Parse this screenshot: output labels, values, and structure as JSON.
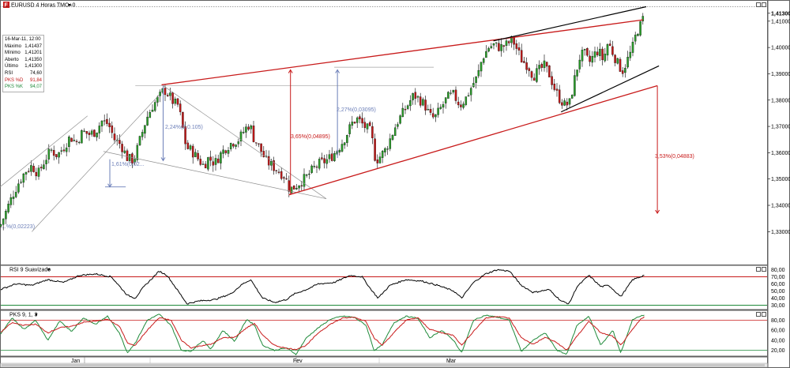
{
  "header": {
    "symbol_badge": "F",
    "title": "EURUSD 4 Horas TMO+0"
  },
  "info_box": {
    "datetime": "16-Mar-11, 12:00",
    "rows": [
      {
        "label": "Máximo",
        "value": "1,41437"
      },
      {
        "label": "Mínimo",
        "value": "1,41201"
      },
      {
        "label": "Aberto",
        "value": "1,41350"
      },
      {
        "label": "Último",
        "value": "1,41300"
      },
      {
        "label": "RSI",
        "value": "74,60"
      },
      {
        "label": "PKS %D",
        "value": "91,84"
      },
      {
        "label": "PKS %K",
        "value": "94,07"
      }
    ]
  },
  "colors": {
    "up": "#2a9d2a",
    "down": "#c01818",
    "trend_red": "#c81a1a",
    "trend_black": "#000000",
    "measure_blue": "#6c7fb8",
    "pks_k": "#1f8a3a",
    "pks_d": "#c81a1a"
  },
  "price_axis": {
    "labels": [
      "1,41300",
      "1,41000",
      "1,40000",
      "1,39000",
      "1,38000",
      "1,37000",
      "1,36000",
      "1,35000",
      "1,34000",
      "1,33000"
    ],
    "current": "1,41300"
  },
  "time_axis": {
    "months": [
      "Jan",
      "Fev",
      "Mar"
    ],
    "year": "2011"
  },
  "annotations": {
    "measure_1": "1,61%(0,02...",
    "measure_2": "2,24%(0,0.105)",
    "measure_3": "3,65%(0,04895)",
    "measure_4": "2,27%(0,03095)",
    "measure_5": "3,53%(0,04883)",
    "measure_6": "...%(0,02223)"
  },
  "rsi_panel": {
    "title": "RSI 9 Suavizado",
    "labels": [
      "80,00",
      "70,00",
      "60,00",
      "50,00",
      "40,00",
      "30,00"
    ],
    "level_high": "70,00",
    "level_low": "30,00"
  },
  "pks_panel": {
    "title": "PKS 9, 1, 3",
    "labels": [
      "80,00",
      "60,00",
      "40,00",
      "20,00"
    ],
    "level_high": "80,00",
    "level_low": "20,00"
  },
  "chart_data": {
    "type": "candlestick",
    "title": "EURUSD 4 Horas TMO+0",
    "period": "4 Horas",
    "x_axis": {
      "months": [
        "Jan",
        "Fev",
        "Mar"
      ],
      "year": "2011"
    },
    "y_range": [
      1.325,
      1.4155
    ],
    "close_path": [
      [
        0,
        1.332
      ],
      [
        8,
        1.338
      ],
      [
        16,
        1.344
      ],
      [
        24,
        1.349
      ],
      [
        32,
        1.353
      ],
      [
        40,
        1.355
      ],
      [
        48,
        1.352
      ],
      [
        56,
        1.357
      ],
      [
        64,
        1.361
      ],
      [
        72,
        1.359
      ],
      [
        80,
        1.362
      ],
      [
        88,
        1.366
      ],
      [
        96,
        1.364
      ],
      [
        104,
        1.368
      ],
      [
        112,
        1.367
      ],
      [
        120,
        1.368
      ],
      [
        128,
        1.372
      ],
      [
        136,
        1.371
      ],
      [
        144,
        1.365
      ],
      [
        152,
        1.363
      ],
      [
        160,
        1.358
      ],
      [
        168,
        1.357
      ],
      [
        176,
        1.365
      ],
      [
        184,
        1.373
      ],
      [
        192,
        1.378
      ],
      [
        200,
        1.381
      ],
      [
        206,
        1.384
      ],
      [
        212,
        1.382
      ],
      [
        218,
        1.379
      ],
      [
        224,
        1.378
      ],
      [
        228,
        1.372
      ],
      [
        234,
        1.362
      ],
      [
        240,
        1.361
      ],
      [
        248,
        1.358
      ],
      [
        256,
        1.355
      ],
      [
        262,
        1.358
      ],
      [
        270,
        1.356
      ],
      [
        276,
        1.359
      ],
      [
        284,
        1.362
      ],
      [
        292,
        1.364
      ],
      [
        300,
        1.365
      ],
      [
        308,
        1.369
      ],
      [
        314,
        1.371
      ],
      [
        318,
        1.366
      ],
      [
        326,
        1.362
      ],
      [
        334,
        1.357
      ],
      [
        342,
        1.355
      ],
      [
        350,
        1.353
      ],
      [
        358,
        1.351
      ],
      [
        364,
        1.346
      ],
      [
        370,
        1.347
      ],
      [
        378,
        1.349
      ],
      [
        386,
        1.351
      ],
      [
        394,
        1.354
      ],
      [
        402,
        1.356
      ],
      [
        410,
        1.357
      ],
      [
        418,
        1.359
      ],
      [
        426,
        1.362
      ],
      [
        434,
        1.366
      ],
      [
        442,
        1.371
      ],
      [
        448,
        1.373
      ],
      [
        452,
        1.372
      ],
      [
        458,
        1.37
      ],
      [
        466,
        1.368
      ],
      [
        472,
        1.357
      ],
      [
        476,
        1.358
      ],
      [
        484,
        1.361
      ],
      [
        490,
        1.365
      ],
      [
        498,
        1.371
      ],
      [
        506,
        1.375
      ],
      [
        512,
        1.378
      ],
      [
        520,
        1.382
      ],
      [
        528,
        1.38
      ],
      [
        534,
        1.378
      ],
      [
        540,
        1.374
      ],
      [
        546,
        1.373
      ],
      [
        554,
        1.377
      ],
      [
        562,
        1.381
      ],
      [
        570,
        1.382
      ],
      [
        578,
        1.378
      ],
      [
        586,
        1.381
      ],
      [
        594,
        1.386
      ],
      [
        600,
        1.389
      ],
      [
        606,
        1.396
      ],
      [
        614,
        1.4
      ],
      [
        620,
        1.401
      ],
      [
        628,
        1.4
      ],
      [
        636,
        1.401
      ],
      [
        644,
        1.403
      ],
      [
        650,
        1.399
      ],
      [
        656,
        1.395
      ],
      [
        664,
        1.393
      ],
      [
        670,
        1.389
      ],
      [
        676,
        1.391
      ],
      [
        684,
        1.393
      ],
      [
        690,
        1.39
      ],
      [
        696,
        1.385
      ],
      [
        702,
        1.381
      ],
      [
        710,
        1.378
      ],
      [
        716,
        1.379
      ],
      [
        722,
        1.388
      ],
      [
        728,
        1.396
      ],
      [
        734,
        1.398
      ],
      [
        740,
        1.394
      ],
      [
        746,
        1.397
      ],
      [
        752,
        1.399
      ],
      [
        758,
        1.395
      ],
      [
        764,
        1.402
      ],
      [
        770,
        1.398
      ],
      [
        776,
        1.394
      ],
      [
        782,
        1.391
      ],
      [
        788,
        1.395
      ],
      [
        794,
        1.399
      ],
      [
        800,
        1.406
      ],
      [
        806,
        1.409
      ],
      [
        810,
        1.413
      ],
      [
        812,
        1.413
      ]
    ],
    "price_labels": [
      "1,41300",
      "1,41000",
      "1,40000",
      "1,39000",
      "1,38000",
      "1,37000",
      "1,36000",
      "1,35000",
      "1,34000",
      "1,33000"
    ],
    "rsi": {
      "name": "RSI 9 Suavizado",
      "levels": [
        30,
        70
      ],
      "range": [
        25,
        85
      ],
      "path": [
        [
          0,
          52
        ],
        [
          20,
          60
        ],
        [
          40,
          58
        ],
        [
          60,
          66
        ],
        [
          80,
          62
        ],
        [
          100,
          72
        ],
        [
          120,
          74
        ],
        [
          140,
          70
        ],
        [
          160,
          44
        ],
        [
          170,
          40
        ],
        [
          180,
          55
        ],
        [
          200,
          78
        ],
        [
          210,
          72
        ],
        [
          225,
          48
        ],
        [
          235,
          32
        ],
        [
          250,
          36
        ],
        [
          270,
          38
        ],
        [
          290,
          46
        ],
        [
          305,
          60
        ],
        [
          315,
          66
        ],
        [
          330,
          40
        ],
        [
          345,
          34
        ],
        [
          360,
          38
        ],
        [
          370,
          46
        ],
        [
          385,
          52
        ],
        [
          400,
          60
        ],
        [
          420,
          62
        ],
        [
          440,
          72
        ],
        [
          455,
          70
        ],
        [
          465,
          54
        ],
        [
          475,
          40
        ],
        [
          490,
          58
        ],
        [
          510,
          66
        ],
        [
          530,
          64
        ],
        [
          550,
          58
        ],
        [
          570,
          50
        ],
        [
          580,
          40
        ],
        [
          595,
          62
        ],
        [
          610,
          74
        ],
        [
          625,
          80
        ],
        [
          640,
          78
        ],
        [
          655,
          58
        ],
        [
          670,
          48
        ],
        [
          690,
          52
        ],
        [
          705,
          36
        ],
        [
          715,
          32
        ],
        [
          725,
          56
        ],
        [
          740,
          72
        ],
        [
          755,
          56
        ],
        [
          765,
          58
        ],
        [
          780,
          42
        ],
        [
          795,
          66
        ],
        [
          805,
          70
        ],
        [
          812,
          74
        ]
      ]
    },
    "pks": {
      "name": "PKS 9, 1, 3",
      "levels": [
        20,
        80
      ],
      "range": [
        10,
        95
      ],
      "k_path": [
        [
          0,
          50
        ],
        [
          15,
          85
        ],
        [
          30,
          62
        ],
        [
          45,
          80
        ],
        [
          60,
          40
        ],
        [
          75,
          78
        ],
        [
          90,
          58
        ],
        [
          105,
          85
        ],
        [
          120,
          72
        ],
        [
          135,
          88
        ],
        [
          150,
          55
        ],
        [
          160,
          15
        ],
        [
          170,
          35
        ],
        [
          185,
          80
        ],
        [
          200,
          92
        ],
        [
          215,
          70
        ],
        [
          228,
          20
        ],
        [
          240,
          18
        ],
        [
          255,
          40
        ],
        [
          265,
          22
        ],
        [
          280,
          60
        ],
        [
          295,
          38
        ],
        [
          310,
          82
        ],
        [
          320,
          70
        ],
        [
          330,
          30
        ],
        [
          345,
          20
        ],
        [
          360,
          25
        ],
        [
          372,
          12
        ],
        [
          385,
          45
        ],
        [
          400,
          65
        ],
        [
          415,
          82
        ],
        [
          430,
          88
        ],
        [
          445,
          86
        ],
        [
          460,
          70
        ],
        [
          470,
          20
        ],
        [
          480,
          30
        ],
        [
          495,
          75
        ],
        [
          510,
          88
        ],
        [
          525,
          84
        ],
        [
          540,
          45
        ],
        [
          555,
          60
        ],
        [
          570,
          40
        ],
        [
          580,
          15
        ],
        [
          595,
          80
        ],
        [
          610,
          90
        ],
        [
          625,
          86
        ],
        [
          640,
          80
        ],
        [
          655,
          18
        ],
        [
          670,
          40
        ],
        [
          685,
          55
        ],
        [
          700,
          20
        ],
        [
          712,
          12
        ],
        [
          725,
          70
        ],
        [
          740,
          88
        ],
        [
          755,
          30
        ],
        [
          770,
          60
        ],
        [
          780,
          15
        ],
        [
          795,
          82
        ],
        [
          805,
          88
        ],
        [
          812,
          92
        ]
      ],
      "d_path": [
        [
          0,
          55
        ],
        [
          15,
          75
        ],
        [
          30,
          70
        ],
        [
          45,
          72
        ],
        [
          60,
          55
        ],
        [
          75,
          65
        ],
        [
          90,
          68
        ],
        [
          105,
          76
        ],
        [
          120,
          78
        ],
        [
          135,
          82
        ],
        [
          150,
          68
        ],
        [
          160,
          35
        ],
        [
          170,
          30
        ],
        [
          185,
          60
        ],
        [
          200,
          85
        ],
        [
          215,
          80
        ],
        [
          228,
          40
        ],
        [
          240,
          25
        ],
        [
          255,
          30
        ],
        [
          265,
          32
        ],
        [
          280,
          45
        ],
        [
          295,
          46
        ],
        [
          310,
          65
        ],
        [
          320,
          74
        ],
        [
          330,
          50
        ],
        [
          345,
          30
        ],
        [
          360,
          24
        ],
        [
          372,
          22
        ],
        [
          385,
          30
        ],
        [
          400,
          55
        ],
        [
          415,
          72
        ],
        [
          430,
          84
        ],
        [
          445,
          86
        ],
        [
          460,
          78
        ],
        [
          470,
          45
        ],
        [
          480,
          30
        ],
        [
          495,
          55
        ],
        [
          510,
          80
        ],
        [
          525,
          85
        ],
        [
          540,
          62
        ],
        [
          555,
          55
        ],
        [
          570,
          50
        ],
        [
          580,
          30
        ],
        [
          595,
          58
        ],
        [
          610,
          84
        ],
        [
          625,
          88
        ],
        [
          640,
          84
        ],
        [
          655,
          45
        ],
        [
          670,
          32
        ],
        [
          685,
          46
        ],
        [
          700,
          35
        ],
        [
          712,
          20
        ],
        [
          725,
          48
        ],
        [
          740,
          78
        ],
        [
          755,
          55
        ],
        [
          770,
          48
        ],
        [
          780,
          30
        ],
        [
          795,
          62
        ],
        [
          805,
          82
        ],
        [
          812,
          90
        ]
      ]
    }
  }
}
